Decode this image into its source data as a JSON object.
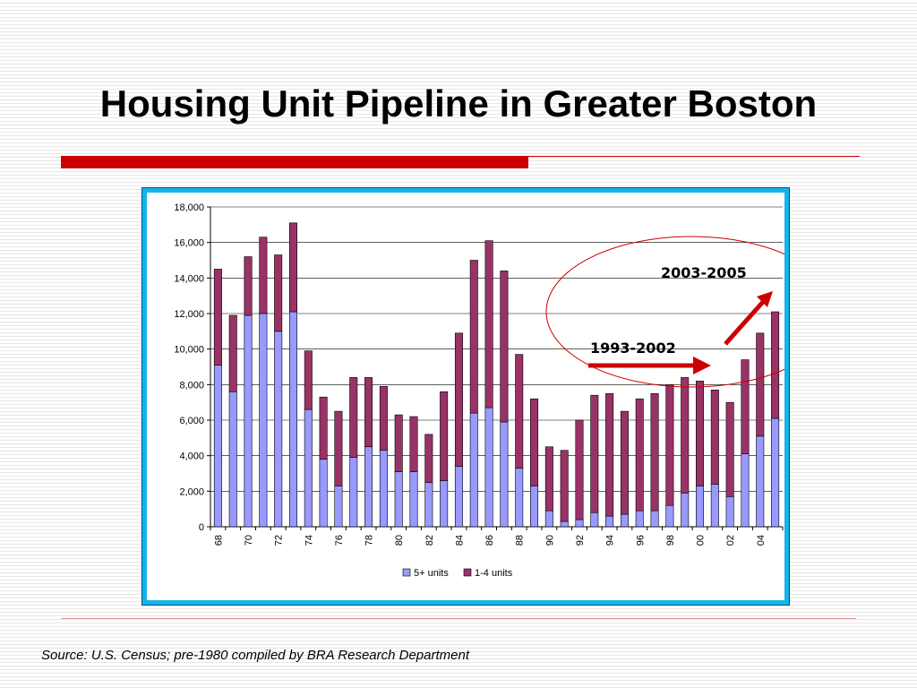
{
  "slide": {
    "title": "Housing Unit Pipeline in Greater Boston",
    "source": "Source:  U.S. Census; pre-1980 compiled by BRA Research Department"
  },
  "colors": {
    "series_5plus": "#9999ff",
    "series_1to4": "#993366",
    "accent_red": "#cc0000",
    "frame_blue": "#14b4e8"
  },
  "chart_data": {
    "type": "bar",
    "stacked": true,
    "categories": [
      "68",
      "69",
      "70",
      "71",
      "72",
      "73",
      "74",
      "75",
      "76",
      "77",
      "78",
      "79",
      "80",
      "81",
      "82",
      "83",
      "84",
      "85",
      "86",
      "87",
      "88",
      "89",
      "90",
      "91",
      "92",
      "93",
      "94",
      "95",
      "96",
      "97",
      "98",
      "99",
      "00",
      "01",
      "02",
      "03",
      "04",
      "05"
    ],
    "tick_labels": [
      "68",
      "70",
      "72",
      "74",
      "76",
      "78",
      "80",
      "82",
      "84",
      "86",
      "88",
      "90",
      "92",
      "94",
      "96",
      "98",
      "00",
      "02",
      "04"
    ],
    "series": [
      {
        "name": "5+ units",
        "color": "#9999ff",
        "values": [
          9100,
          7600,
          11900,
          12000,
          11000,
          12100,
          6600,
          3800,
          2300,
          3900,
          4500,
          4300,
          3100,
          3100,
          2500,
          2600,
          3400,
          6400,
          6700,
          5900,
          3300,
          2300,
          900,
          300,
          400,
          800,
          600,
          700,
          900,
          900,
          1200,
          1900,
          2300,
          2400,
          1700,
          4100,
          5100,
          6100
        ]
      },
      {
        "name": "1-4 units",
        "color": "#993366",
        "values": [
          5400,
          4300,
          3300,
          4300,
          4300,
          5000,
          3300,
          3500,
          4200,
          4500,
          3900,
          3600,
          3200,
          3100,
          2700,
          5000,
          7500,
          8600,
          9400,
          8500,
          6400,
          4900,
          3600,
          4000,
          5600,
          6600,
          6900,
          5800,
          6300,
          6600,
          6800,
          6500,
          5900,
          5300,
          5300,
          5300,
          5800,
          6000
        ]
      }
    ],
    "ylim": [
      0,
      18000
    ],
    "yticks": [
      "0",
      "2,000",
      "4,000",
      "6,000",
      "8,000",
      "10,000",
      "12,000",
      "14,000",
      "16,000",
      "18,000"
    ],
    "ytick_values": [
      0,
      2000,
      4000,
      6000,
      8000,
      10000,
      12000,
      14000,
      16000,
      18000
    ],
    "grid": true,
    "legend_position": "bottom",
    "annotations": {
      "range_a": "1993-2002",
      "range_b": "2003-2005"
    }
  }
}
